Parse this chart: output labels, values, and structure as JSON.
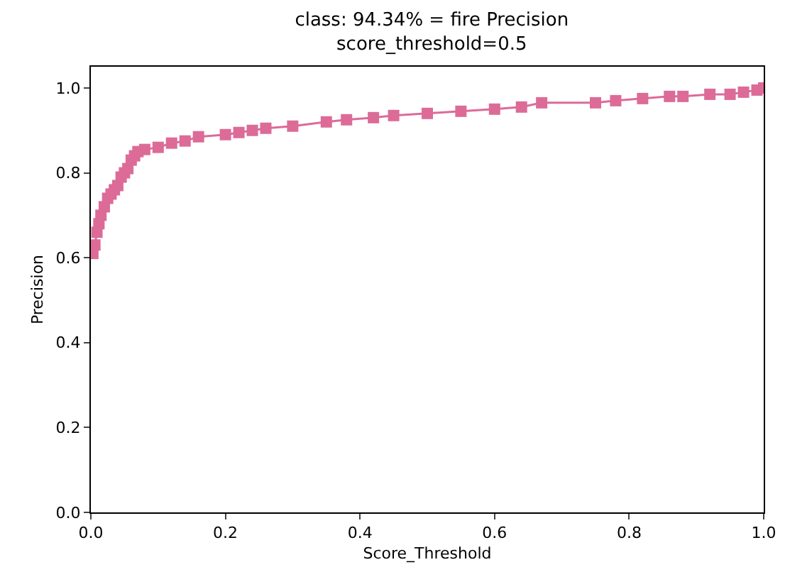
{
  "chart_data": {
    "type": "line",
    "title": "class: 94.34% = fire Precision\nscore_threshold=0.5",
    "xlabel": "Score_Threshold",
    "ylabel": "Precision",
    "x": [
      0.003,
      0.006,
      0.009,
      0.012,
      0.015,
      0.02,
      0.025,
      0.03,
      0.035,
      0.04,
      0.045,
      0.05,
      0.055,
      0.06,
      0.065,
      0.07,
      0.08,
      0.1,
      0.12,
      0.14,
      0.16,
      0.2,
      0.22,
      0.24,
      0.26,
      0.3,
      0.35,
      0.38,
      0.42,
      0.45,
      0.5,
      0.55,
      0.6,
      0.64,
      0.67,
      0.75,
      0.78,
      0.82,
      0.86,
      0.88,
      0.92,
      0.95,
      0.97,
      0.99,
      1.0
    ],
    "series": [
      {
        "color": "#dc6b98",
        "values": [
          0.61,
          0.63,
          0.66,
          0.68,
          0.7,
          0.72,
          0.74,
          0.75,
          0.76,
          0.77,
          0.79,
          0.8,
          0.81,
          0.83,
          0.84,
          0.85,
          0.855,
          0.86,
          0.87,
          0.875,
          0.885,
          0.89,
          0.895,
          0.9,
          0.905,
          0.91,
          0.92,
          0.925,
          0.93,
          0.935,
          0.94,
          0.945,
          0.95,
          0.955,
          0.965,
          0.965,
          0.97,
          0.975,
          0.98,
          0.98,
          0.985,
          0.985,
          0.99,
          0.995,
          1.0
        ]
      }
    ],
    "xlim": [
      0,
      1
    ],
    "ylim": [
      0,
      1.05
    ],
    "xticks": [
      {
        "value": 0,
        "label": "0.0"
      },
      0.2,
      0.4,
      0.6,
      0.8,
      {
        "value": 1,
        "label": "1.0"
      }
    ],
    "yticks": [
      {
        "value": 0,
        "label": "0.0"
      },
      0.2,
      0.4,
      0.6,
      0.8,
      {
        "value": 1,
        "label": "1.0"
      }
    ],
    "grid": false,
    "legend": false,
    "marker": "square",
    "line_style": "solid"
  }
}
